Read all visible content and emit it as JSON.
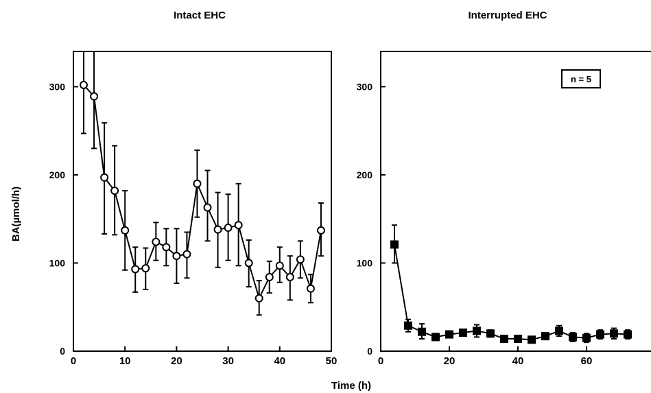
{
  "figure": {
    "ylabel": "BA(µmol/h)",
    "xlabel": "Time (h)"
  },
  "chart_data": [
    {
      "type": "line",
      "title": "Intact EHC",
      "xlabel": "Time (h)",
      "ylabel": "BA(µmol/h)",
      "xlim": [
        0,
        50
      ],
      "ylim": [
        0,
        340
      ],
      "xticks": [
        0,
        10,
        20,
        30,
        40,
        50
      ],
      "xtick_labels": [
        "0",
        "10",
        "20",
        "30",
        "40",
        "50"
      ],
      "yticks": [
        0,
        100,
        200,
        300
      ],
      "ytick_labels": [
        "0",
        "100",
        "200",
        "300"
      ],
      "grid": false,
      "marker": "open-circle",
      "series": [
        {
          "x": [
            2,
            4,
            6,
            8,
            10,
            12,
            14,
            16,
            18,
            20,
            22,
            24,
            26,
            28,
            30,
            32,
            34,
            36,
            38,
            40,
            42,
            44,
            46,
            48
          ],
          "y": [
            302,
            289,
            197,
            182,
            137,
            93,
            94,
            124,
            118,
            108,
            110,
            190,
            163,
            138,
            140,
            143,
            100,
            60,
            84,
            97,
            84,
            104,
            71,
            137
          ],
          "err_low": [
            247,
            230,
            133,
            132,
            92,
            67,
            70,
            103,
            97,
            77,
            83,
            152,
            125,
            95,
            103,
            97,
            73,
            41,
            66,
            78,
            58,
            83,
            55,
            108
          ],
          "err_high": [
            340,
            340,
            259,
            233,
            182,
            118,
            117,
            146,
            139,
            139,
            135,
            228,
            205,
            180,
            178,
            190,
            126,
            80,
            102,
            118,
            108,
            125,
            87,
            168
          ]
        }
      ]
    },
    {
      "type": "line",
      "title": "Interrupted EHC",
      "xlabel": "Time (h)",
      "xlim": [
        0,
        80
      ],
      "ylim": [
        0,
        340
      ],
      "xticks": [
        0,
        20,
        40,
        60
      ],
      "xtick_labels": [
        "0",
        "20",
        "40",
        "60"
      ],
      "yticks": [
        0,
        100,
        200,
        300
      ],
      "ytick_labels": [
        "0",
        "100",
        "200",
        "300"
      ],
      "grid": false,
      "marker": "filled-square",
      "annotation": "n = 5",
      "series": [
        {
          "x": [
            4,
            8,
            12,
            16,
            20,
            24,
            28,
            32,
            36,
            40,
            44,
            48,
            52,
            56,
            60,
            64,
            68,
            72
          ],
          "y": [
            121,
            29,
            22,
            16,
            19,
            21,
            23,
            20,
            14,
            14,
            13,
            17,
            23,
            16,
            15,
            19,
            20,
            19
          ],
          "err_low": [
            100,
            22,
            14,
            13,
            16,
            18,
            16,
            16,
            11,
            11,
            11,
            14,
            17,
            11,
            10,
            14,
            14,
            14
          ],
          "err_high": [
            143,
            36,
            31,
            20,
            22,
            24,
            30,
            24,
            17,
            17,
            16,
            20,
            29,
            21,
            20,
            24,
            26,
            24
          ]
        }
      ]
    }
  ]
}
